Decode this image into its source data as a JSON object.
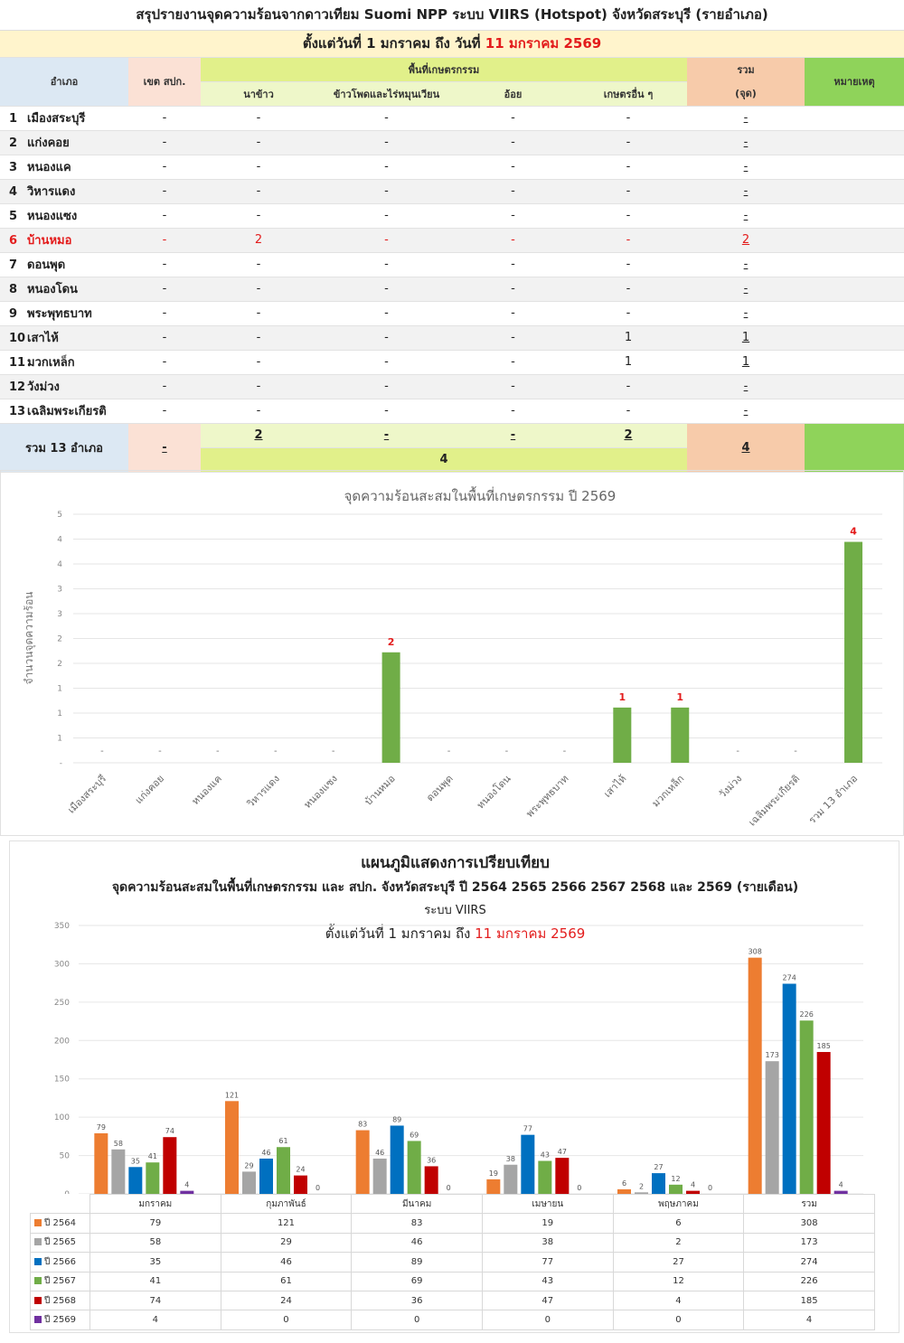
{
  "report": {
    "title": "สรุปรายงานจุดความร้อนจากดาวเทียม Suomi NPP ระบบ VIIRS (Hotspot) จังหวัดสระบุรี (รายอำเภอ)",
    "date_prefix": "ตั้งแต่วันที่ 1 มกราคม  ถึง วันที่",
    "date_end": "11 มกราคม 2569"
  },
  "table": {
    "headers": {
      "district": "อำเภอ",
      "zone": "เขต สปก.",
      "agri": "พื้นที่เกษตรกรรม",
      "rice": "นาข้าว",
      "corn": "ข้าวโพดและไร่หมุนเวียน",
      "cane": "อ้อย",
      "other": "เกษตรอื่น ๆ",
      "total": "รวม",
      "total_unit": "(จุด)",
      "note": "หมายเหตุ"
    },
    "rows": [
      {
        "no": "1",
        "name": "เมืองสระบุรี",
        "zone": "-",
        "rice": "-",
        "corn": "-",
        "cane": "-",
        "other": "-",
        "total": "-",
        "highlight": false
      },
      {
        "no": "2",
        "name": "แก่งคอย",
        "zone": "-",
        "rice": "-",
        "corn": "-",
        "cane": "-",
        "other": "-",
        "total": "-",
        "highlight": false
      },
      {
        "no": "3",
        "name": "หนองแค",
        "zone": "-",
        "rice": "-",
        "corn": "-",
        "cane": "-",
        "other": "-",
        "total": "-",
        "highlight": false
      },
      {
        "no": "4",
        "name": "วิหารแดง",
        "zone": "-",
        "rice": "-",
        "corn": "-",
        "cane": "-",
        "other": "-",
        "total": "-",
        "highlight": false
      },
      {
        "no": "5",
        "name": "หนองแซง",
        "zone": "-",
        "rice": "-",
        "corn": "-",
        "cane": "-",
        "other": "-",
        "total": "-",
        "highlight": false
      },
      {
        "no": "6",
        "name": "บ้านหมอ",
        "zone": "-",
        "rice": "2",
        "corn": "-",
        "cane": "-",
        "other": "-",
        "total": "2",
        "highlight": true
      },
      {
        "no": "7",
        "name": "ดอนพุด",
        "zone": "-",
        "rice": "-",
        "corn": "-",
        "cane": "-",
        "other": "-",
        "total": "-",
        "highlight": false
      },
      {
        "no": "8",
        "name": "หนองโดน",
        "zone": "-",
        "rice": "-",
        "corn": "-",
        "cane": "-",
        "other": "-",
        "total": "-",
        "highlight": false
      },
      {
        "no": "9",
        "name": "พระพุทธบาท",
        "zone": "-",
        "rice": "-",
        "corn": "-",
        "cane": "-",
        "other": "-",
        "total": "-",
        "highlight": false
      },
      {
        "no": "10",
        "name": "เสาไห้",
        "zone": "-",
        "rice": "-",
        "corn": "-",
        "cane": "-",
        "other": "1",
        "total": "1",
        "highlight": false
      },
      {
        "no": "11",
        "name": "มวกเหล็ก",
        "zone": "-",
        "rice": "-",
        "corn": "-",
        "cane": "-",
        "other": "1",
        "total": "1",
        "highlight": false
      },
      {
        "no": "12",
        "name": "วังม่วง",
        "zone": "-",
        "rice": "-",
        "corn": "-",
        "cane": "-",
        "other": "-",
        "total": "-",
        "highlight": false
      },
      {
        "no": "13",
        "name": "เฉลิมพระเกียรติ",
        "zone": "-",
        "rice": "-",
        "corn": "-",
        "cane": "-",
        "other": "-",
        "total": "-",
        "highlight": false
      }
    ],
    "summary": {
      "label": "รวม 13 อำเภอ",
      "zone": "-",
      "rice": "2",
      "corn": "-",
      "cane": "-",
      "other": "2",
      "agri_total": "4",
      "total": "4"
    }
  },
  "chart_data": [
    {
      "type": "bar",
      "title": "จุดความร้อนสะสมในพื้นที่เกษตรกรรม ปี 2569",
      "ylabel": "จำนวนจุดความร้อน",
      "categories": [
        "เมืองสระบุรี",
        "แก่งคอย",
        "หนองแค",
        "วิหารแดง",
        "หนองแซง",
        "บ้านหมอ",
        "ดอนพุด",
        "หนองโดน",
        "พระพุทธบาท",
        "เสาไห้",
        "มวกเหล็ก",
        "วังม่วง",
        "เฉลิมพระเกียรติ",
        "รวม 13 อำเภอ"
      ],
      "values": [
        0,
        0,
        0,
        0,
        0,
        2,
        0,
        0,
        0,
        1,
        1,
        0,
        0,
        4
      ],
      "data_labels": [
        "-",
        "-",
        "-",
        "-",
        "-",
        "2",
        "-",
        "-",
        "-",
        "1",
        "1",
        "-",
        "-",
        "4"
      ],
      "ylim": [
        0,
        4.5
      ],
      "y_tick_labels": [
        "-",
        "1",
        "1",
        "1",
        "2",
        "2",
        "3",
        "3",
        "4",
        "4",
        "5"
      ],
      "bar_color": "#70ad47",
      "label_color": "#e31c1c",
      "grid": true
    },
    {
      "type": "bar",
      "title": "แผนภูมิแสดงการเปรียบเทียบ",
      "subtitle": "จุดความร้อนสะสมในพื้นที่เกษตรกรรม  และ สปก. จังหวัดสระบุรี  ปี   2564 2565 2566 2567 2568 และ 2569 (รายเดือน)",
      "subtitle2": "ระบบ VIIRS",
      "date_prefix": "ตั้งแต่วันที่ 1 มกราคม ถึง",
      "date_end": "11 มกราคม 2569",
      "categories": [
        "มกราคม",
        "กุมภาพันธ์",
        "มีนาคม",
        "เมษายน",
        "พฤษภาคม",
        "รวม"
      ],
      "ylim": [
        0,
        350
      ],
      "y_ticks": [
        0,
        50,
        100,
        150,
        200,
        250,
        300,
        350
      ],
      "grid": true,
      "series": [
        {
          "name": "ปี 2564",
          "color": "#ed7d31",
          "values": [
            79,
            121,
            83,
            19,
            6,
            308
          ]
        },
        {
          "name": "ปี 2565",
          "color": "#a5a5a5",
          "values": [
            58,
            29,
            46,
            38,
            2,
            173
          ]
        },
        {
          "name": "ปี 2566",
          "color": "#0070c0",
          "values": [
            35,
            46,
            89,
            77,
            27,
            274
          ]
        },
        {
          "name": "ปี 2567",
          "color": "#70ad47",
          "values": [
            41,
            61,
            69,
            43,
            12,
            226
          ]
        },
        {
          "name": "ปี 2568",
          "color": "#c00000",
          "values": [
            74,
            24,
            36,
            47,
            4,
            185
          ]
        },
        {
          "name": "ปี 2569",
          "color": "#7030a0",
          "values": [
            4,
            0,
            0,
            0,
            0,
            4
          ]
        }
      ]
    }
  ]
}
